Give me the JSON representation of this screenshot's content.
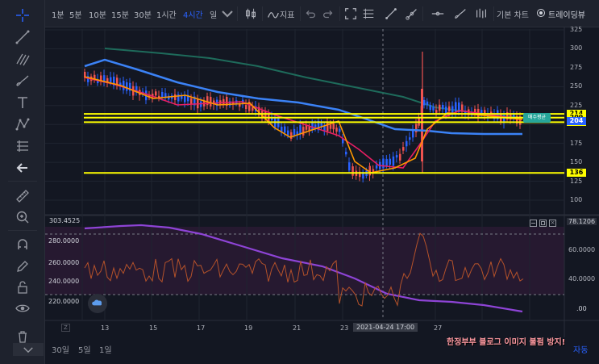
{
  "toolbar": {
    "timeframes": [
      "1분",
      "5분",
      "10분",
      "15분",
      "30분",
      "1시간",
      "4시간",
      "일"
    ],
    "active_timeframe": "4시간",
    "indicators_label": "지표",
    "basic_chart_label": "기본 차트",
    "tradingview_label": "트레이딩뷰"
  },
  "main_chart": {
    "price_ticks": [
      "325",
      "300",
      "275",
      "250",
      "225",
      "200",
      "175",
      "150",
      "125",
      "100"
    ],
    "hlines": [
      {
        "label": "214",
        "price": 214,
        "color": "#ffff00"
      },
      {
        "label": "209",
        "price": 209,
        "color": "#ffff00"
      },
      {
        "label": "203",
        "price": 203,
        "color": "#ffff00"
      },
      {
        "label": "136",
        "price": 136,
        "color": "#ffff00"
      }
    ],
    "current_price": {
      "label": "204",
      "price": 204,
      "color": "#2962ff"
    },
    "avg_price_badge": "매수평균",
    "avg_price_color": "#26a69a",
    "colors": {
      "up": "#ef5350",
      "down": "#2962ff",
      "ma_blue": "#3b82f6",
      "ma_teal": "#1e6b5b",
      "ma_pink": "#e91e63",
      "ma_orange": "#ff9800"
    }
  },
  "sub_chart": {
    "top_value": "303.4525",
    "left_ticks": [
      "280.0000",
      "260.0000",
      "240.0000",
      "220.0000"
    ],
    "right_top": "78.1206",
    "right_ticks": [
      "60.0000",
      "40.0000"
    ],
    "right_bottom": ".00"
  },
  "x_axis": {
    "dates": [
      "13",
      "15",
      "17",
      "19",
      "21",
      "23",
      "27"
    ],
    "crosshair_label": "2021-04-24   17:00"
  },
  "bottom_bar": {
    "ranges": [
      "30일",
      "5일",
      "1일"
    ],
    "auto_label": "자동"
  },
  "watermark": "한정부부 블로그 이미지 불펌 방지!"
}
